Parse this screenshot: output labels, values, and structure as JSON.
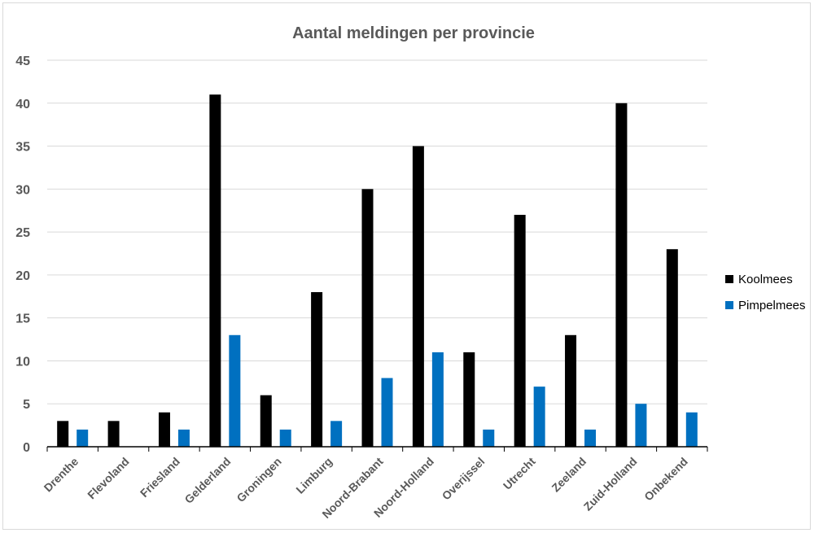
{
  "chart_data": {
    "type": "bar",
    "title": "Aantal meldingen per provincie",
    "xlabel": "",
    "ylabel": "",
    "categories": [
      "Drenthe",
      "Flevoland",
      "Friesland",
      "Gelderland",
      "Groningen",
      "Limburg",
      "Noord-Brabant",
      "Noord-Holland",
      "Overijssel",
      "Utrecht",
      "Zeeland",
      "Zuid-Holland",
      "Onbekend"
    ],
    "series": [
      {
        "name": "Koolmees",
        "color": "#000000",
        "values": [
          3,
          3,
          4,
          41,
          6,
          18,
          30,
          35,
          11,
          27,
          13,
          40,
          23
        ]
      },
      {
        "name": "Pimpelmees",
        "color": "#0070c0",
        "values": [
          2,
          0,
          2,
          13,
          2,
          3,
          8,
          11,
          2,
          7,
          2,
          5,
          4
        ]
      }
    ],
    "ylim": [
      0,
      45
    ],
    "yticks": [
      0,
      5,
      10,
      15,
      20,
      25,
      30,
      35,
      40,
      45
    ],
    "grid": true,
    "legend": "right"
  }
}
